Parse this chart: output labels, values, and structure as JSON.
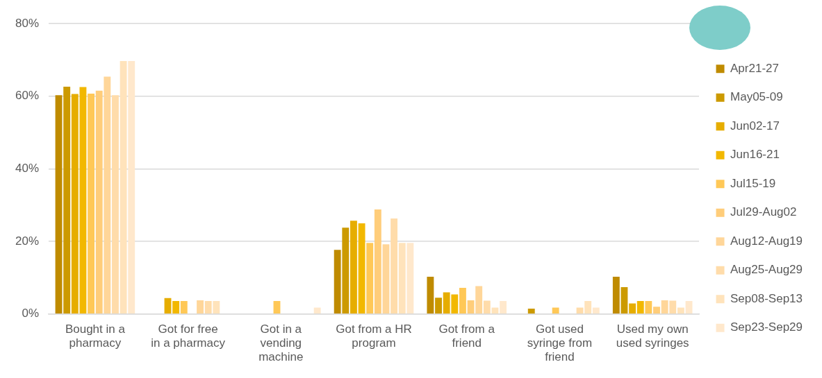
{
  "chart_data": {
    "type": "bar",
    "categories": [
      "Bought in a pharmacy",
      "Got for free in a pharmacy",
      "Got in a vending machine",
      "Got from a HR program",
      "Got from a friend",
      "Got used syringe from friend",
      "Used my own used syringes"
    ],
    "series": [
      {
        "name": "Apr21-27",
        "color": "#bf8b00",
        "values": [
          60.3,
          null,
          null,
          17.7,
          10.3,
          null,
          10.3
        ]
      },
      {
        "name": "May05-09",
        "color": "#cc9a00",
        "values": [
          62.6,
          null,
          null,
          23.8,
          4.5,
          1.5,
          7.4
        ]
      },
      {
        "name": "Jun02-17",
        "color": "#e6ad00",
        "values": [
          60.6,
          4.4,
          null,
          25.7,
          6.0,
          null,
          2.9
        ]
      },
      {
        "name": "Jun16-21",
        "color": "#f2b800",
        "values": [
          62.5,
          3.6,
          null,
          25.0,
          5.4,
          null,
          3.6
        ]
      },
      {
        "name": "Jul15-19",
        "color": "#ffc857",
        "values": [
          60.7,
          3.6,
          3.6,
          19.6,
          7.2,
          1.8,
          3.6
        ]
      },
      {
        "name": "Jul29-Aug02",
        "color": "#ffcd7a",
        "values": [
          61.5,
          null,
          null,
          28.8,
          3.8,
          null,
          2.0
        ]
      },
      {
        "name": "Aug12-Aug19",
        "color": "#ffd699",
        "values": [
          65.4,
          3.8,
          null,
          19.2,
          7.7,
          null,
          3.8
        ]
      },
      {
        "name": "Aug25-Aug29",
        "color": "#ffdcaa",
        "values": [
          60.3,
          3.6,
          null,
          26.3,
          3.7,
          1.8,
          3.7
        ]
      },
      {
        "name": "Sep08-Sep13",
        "color": "#ffe3bb",
        "values": [
          69.7,
          3.6,
          null,
          19.6,
          1.8,
          3.6,
          1.8
        ]
      },
      {
        "name": "Sep23-Sep29",
        "color": "#ffe8cc",
        "values": [
          69.7,
          null,
          1.8,
          19.6,
          3.6,
          1.8,
          3.6
        ]
      }
    ],
    "ylim": [
      0,
      80
    ],
    "yticks": [
      {
        "value": 0,
        "label": "0%"
      },
      {
        "value": 20,
        "label": "20%"
      },
      {
        "value": 40,
        "label": "40%"
      },
      {
        "value": 60,
        "label": "60%"
      },
      {
        "value": 80,
        "label": "80%"
      }
    ],
    "grid": "y",
    "legend": "right"
  }
}
